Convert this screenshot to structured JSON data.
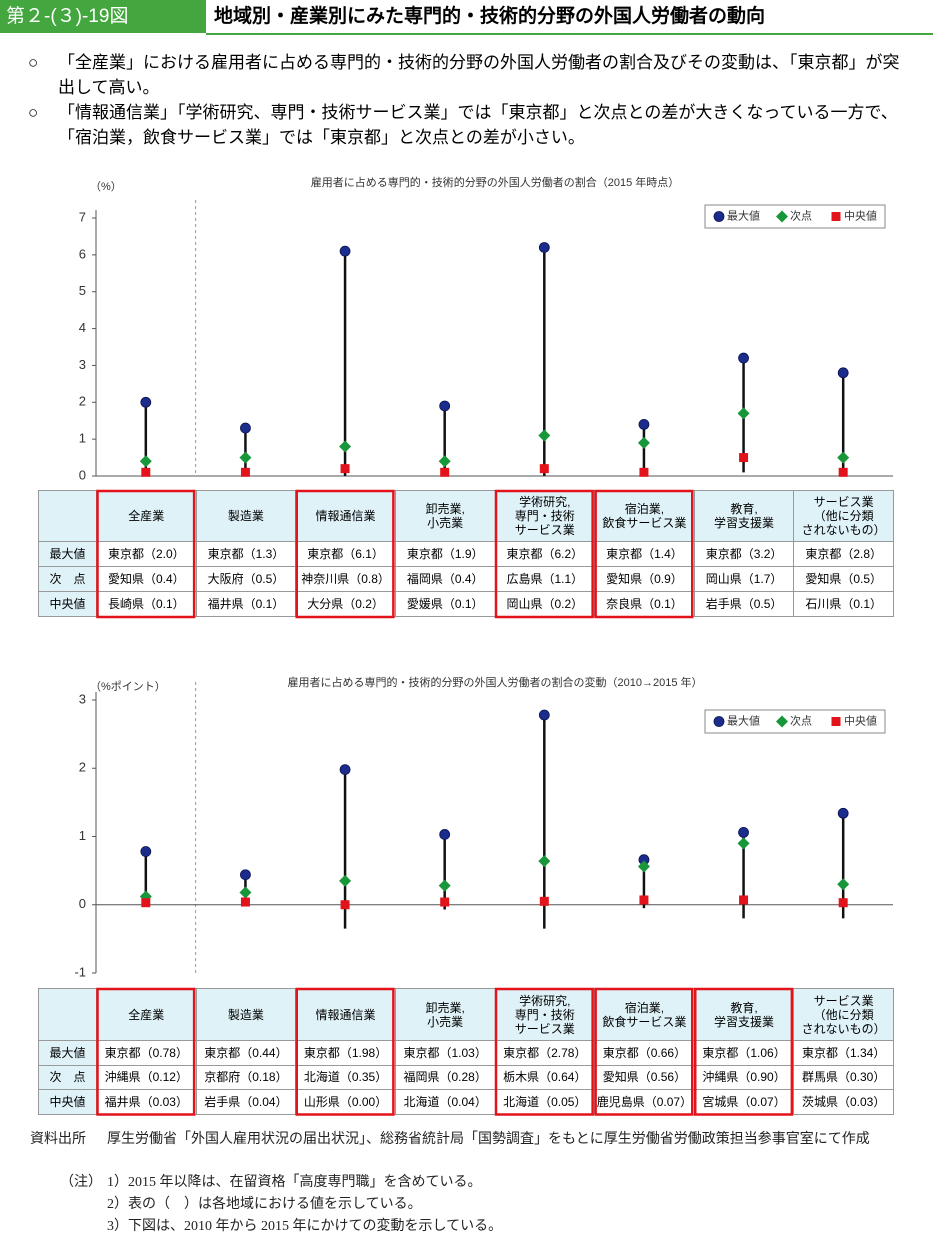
{
  "header": {
    "label": "第２-(３)-19図",
    "title": "地域別・産業別にみた専門的・技術的分野の外国人労働者の動向"
  },
  "bullets": [
    {
      "mark": "○",
      "text": "「全産業」における雇用者に占める専門的・技術的分野の外国人労働者の割合及びその変動は、「東京都」が突出して高い。"
    },
    {
      "mark": "○",
      "text": "「情報通信業」「学術研究、専門・技術サービス業」では「東京都」と次点との差が大きくなっている一方で、「宿泊業，飲食サービス業」では「東京都」と次点との差が小さい。"
    }
  ],
  "chart_data": [
    {
      "type": "range",
      "title": "雇用者に占める専門的・技術的分野の外国人労働者の割合（2015 年時点）",
      "y_unit": "（%）",
      "categories": [
        "全産業",
        "製造業",
        "情報通信業",
        "卸売業,\n小売業",
        "学術研究,\n専門・技術\nサービス業",
        "宿泊業,\n飲食サービス業",
        "教育,\n学習支援業",
        "サービス業\n（他に分類\nされないもの）"
      ],
      "series": [
        {
          "name": "最大値",
          "color": "#1c2c8c",
          "values": [
            2.0,
            1.3,
            6.1,
            1.9,
            6.2,
            1.4,
            3.2,
            2.8
          ]
        },
        {
          "name": "次点",
          "color": "#18963a",
          "values": [
            0.4,
            0.5,
            0.8,
            0.4,
            1.1,
            0.9,
            1.7,
            0.5
          ]
        },
        {
          "name": "中央値",
          "color": "#e2131b",
          "values": [
            0.1,
            0.1,
            0.2,
            0.1,
            0.2,
            0.1,
            0.5,
            0.1
          ]
        }
      ],
      "lows": [
        0,
        0,
        0,
        0,
        0,
        0,
        0.1,
        0
      ],
      "ylim": [
        0,
        7
      ],
      "yticks": [
        0,
        1,
        2,
        3,
        4,
        5,
        6,
        7
      ],
      "highlight": [
        0,
        2,
        4,
        5
      ],
      "table": {
        "row_labels": [
          "最大値",
          "次　点",
          "中央値"
        ],
        "rows": [
          [
            "東京都（2.0）",
            "東京都（1.3）",
            "東京都（6.1）",
            "東京都（1.9）",
            "東京都（6.2）",
            "東京都（1.4）",
            "東京都（3.2）",
            "東京都（2.8）"
          ],
          [
            "愛知県（0.4）",
            "大阪府（0.5）",
            "神奈川県（0.8）",
            "福岡県（0.4）",
            "広島県（1.1）",
            "愛知県（0.9）",
            "岡山県（1.7）",
            "愛知県（0.5）"
          ],
          [
            "長崎県（0.1）",
            "福井県（0.1）",
            "大分県（0.2）",
            "愛媛県（0.1）",
            "岡山県（0.2）",
            "奈良県（0.1）",
            "岩手県（0.5）",
            "石川県（0.1）"
          ]
        ]
      }
    },
    {
      "type": "range",
      "title": "雇用者に占める専門的・技術的分野の外国人労働者の割合の変動（2010→2015 年）",
      "y_unit": "（%ポイント）",
      "categories": [
        "全産業",
        "製造業",
        "情報通信業",
        "卸売業,\n小売業",
        "学術研究,\n専門・技術\nサービス業",
        "宿泊業,\n飲食サービス業",
        "教育,\n学習支援業",
        "サービス業\n（他に分類\nされないもの）"
      ],
      "series": [
        {
          "name": "最大値",
          "color": "#1c2c8c",
          "values": [
            0.78,
            0.44,
            1.98,
            1.03,
            2.78,
            0.66,
            1.06,
            1.34
          ]
        },
        {
          "name": "次点",
          "color": "#18963a",
          "values": [
            0.12,
            0.18,
            0.35,
            0.28,
            0.64,
            0.56,
            0.9,
            0.3
          ]
        },
        {
          "name": "中央値",
          "color": "#e2131b",
          "values": [
            0.03,
            0.04,
            0.0,
            0.04,
            0.05,
            0.07,
            0.07,
            0.03
          ]
        }
      ],
      "lows": [
        0,
        0,
        -0.35,
        -0.07,
        -0.35,
        -0.05,
        -0.2,
        -0.2
      ],
      "ylim": [
        -1,
        3
      ],
      "yticks": [
        -1,
        0,
        1,
        2,
        3
      ],
      "highlight": [
        0,
        2,
        4,
        5,
        6
      ],
      "table": {
        "row_labels": [
          "最大値",
          "次　点",
          "中央値"
        ],
        "rows": [
          [
            "東京都（0.78）",
            "東京都（0.44）",
            "東京都（1.98）",
            "東京都（1.03）",
            "東京都（2.78）",
            "東京都（0.66）",
            "東京都（1.06）",
            "東京都（1.34）"
          ],
          [
            "沖縄県（0.12）",
            "京都府（0.18）",
            "北海道（0.35）",
            "福岡県（0.28）",
            "栃木県（0.64）",
            "愛知県（0.56）",
            "沖縄県（0.90）",
            "群馬県（0.30）"
          ],
          [
            "福井県（0.03）",
            "岩手県（0.04）",
            "山形県（0.00）",
            "北海道（0.04）",
            "北海道（0.05）",
            "鹿児島県（0.07）",
            "宮城県（0.07）",
            "茨城県（0.03）"
          ]
        ]
      }
    }
  ],
  "source": {
    "label": "資料出所",
    "text": "厚生労働省「外国人雇用状況の届出状況」、総務省統計局「国勢調査」をもとに厚生労働省労働政策担当参事官室にて作成"
  },
  "notes": {
    "label": "（注）",
    "items": [
      "1）2015 年以降は、在留資格「高度専門職」を含めている。",
      "2）表の（　）は各地域における値を示している。",
      "3）下図は、2010 年から 2015 年にかけての変動を示している。"
    ]
  }
}
